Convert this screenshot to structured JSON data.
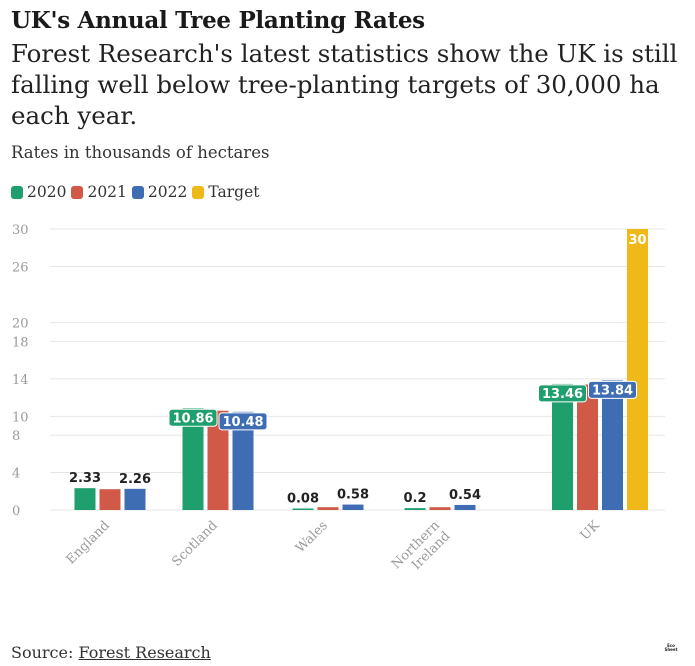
{
  "title": "UK's Annual Tree Planting Rates",
  "subtitle": "Forest Research's latest statistics show the UK is still falling well below tree-planting targets of 30,000 ha each year.",
  "note": "Rates in thousands of hectares",
  "source_label": "Source:",
  "source_link": "Forest Research",
  "logo_text": "Eco Sheet",
  "colors": {
    "c2020": "#1f9e6e",
    "c2021": "#d05a47",
    "c2022": "#3e6db3",
    "target": "#f0b91a",
    "grid": "#e6e6e6",
    "axis_text": "#9a9a9a"
  },
  "chart_data": {
    "type": "bar",
    "title": "UK's Annual Tree Planting Rates",
    "ylabel": "Rates in thousands of hectares",
    "xlabel": "",
    "ylim": [
      0,
      30
    ],
    "y_ticks": [
      0,
      4,
      8,
      10,
      14,
      18,
      20,
      26,
      30
    ],
    "grid": true,
    "legend": "top-left",
    "categories": [
      "England",
      "Scotland",
      "Wales",
      "Northern Ireland",
      "UK"
    ],
    "category_labels": [
      [
        "England"
      ],
      [
        "Scotland"
      ],
      [
        "Wales"
      ],
      [
        "Northern",
        "Ireland"
      ],
      [
        "UK"
      ]
    ],
    "series": [
      {
        "name": "2020",
        "values": [
          2.33,
          10.86,
          0.08,
          0.2,
          13.46
        ]
      },
      {
        "name": "2021",
        "values": [
          2.22,
          10.6,
          0.3,
          0.3,
          13.4
        ]
      },
      {
        "name": "2022",
        "values": [
          2.26,
          10.48,
          0.58,
          0.54,
          13.84
        ]
      },
      {
        "name": "Target",
        "values": [
          null,
          null,
          null,
          null,
          30
        ]
      }
    ],
    "data_labels": [
      {
        "series": 0,
        "category": 0,
        "text": "2.33",
        "style": "above"
      },
      {
        "series": 2,
        "category": 0,
        "text": "2.26",
        "style": "above"
      },
      {
        "series": 0,
        "category": 1,
        "text": "10.86",
        "style": "badge"
      },
      {
        "series": 2,
        "category": 1,
        "text": "10.48",
        "style": "badge"
      },
      {
        "series": 0,
        "category": 2,
        "text": "0.08",
        "style": "above"
      },
      {
        "series": 2,
        "category": 2,
        "text": "0.58",
        "style": "above"
      },
      {
        "series": 0,
        "category": 3,
        "text": "0.2",
        "style": "above"
      },
      {
        "series": 2,
        "category": 3,
        "text": "0.54",
        "style": "above"
      },
      {
        "series": 0,
        "category": 4,
        "text": "13.46",
        "style": "badge"
      },
      {
        "series": 2,
        "category": 4,
        "text": "13.84",
        "style": "badge"
      },
      {
        "series": 3,
        "category": 4,
        "text": "30",
        "style": "inside"
      }
    ]
  }
}
